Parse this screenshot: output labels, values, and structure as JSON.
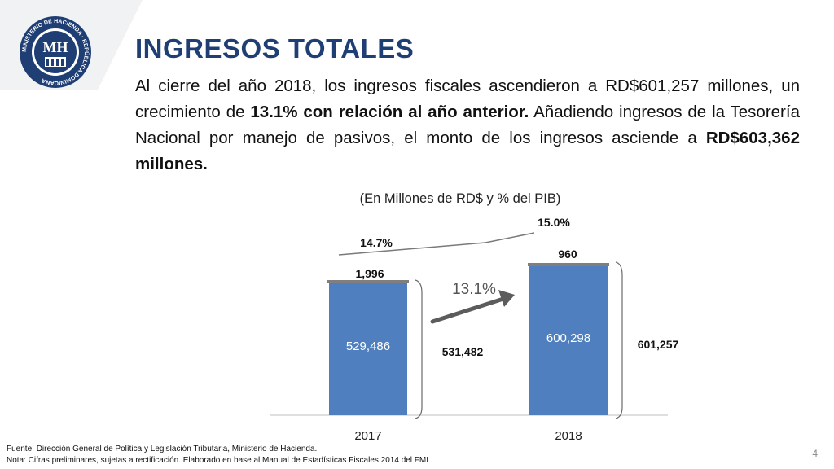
{
  "slide": {
    "title": "INGRESOS TOTALES",
    "paragraph": {
      "p1": "Al cierre del año 2018, los ingresos fiscales ascendieron a RD$601,257 millones, un crecimiento de ",
      "b1": "13.1% con relación al año anterior.",
      "p2": " Añadiendo ingresos de la Tesorería Nacional por manejo de pasivos, el monto de los ingresos asciende a ",
      "b2": "RD$603,362 millones."
    },
    "logo_text": "MH",
    "logo_ring_text": "MINISTERIO DE HACIENDA · REPÚBLICA DOMINICANA",
    "footer": {
      "line1": "Fuente: Dirección General de Política y Legislación Tributaria, Ministerio de Hacienda.",
      "line2": "Nota: Cifras preliminares, sujetas a rectificación. Elaborado en base al Manual  de Estadísticas Fiscales  2014 del FMI ."
    },
    "page_number": "4"
  },
  "colors": {
    "title": "#1f3f74",
    "bar_main": "#4f7fbf",
    "bar_top": "#7f7f7f",
    "arrow": "#5c5c5c",
    "bracket": "#6a6a6a",
    "logo_blue": "#1f3f74"
  },
  "chart_data": {
    "type": "bar",
    "stacked": true,
    "subtitle": "(En Millones de RD$ y % del PIB)",
    "categories": [
      "2017",
      "2018"
    ],
    "series": [
      {
        "values": [
          529486,
          600298
        ],
        "labels": [
          "529,486",
          "600,298"
        ]
      },
      {
        "values": [
          1996,
          960
        ],
        "labels": [
          "1,996",
          "960"
        ]
      }
    ],
    "totals": {
      "values": [
        531482,
        601257
      ],
      "labels": [
        "531,482",
        "601,257"
      ]
    },
    "pct_pib": {
      "values": [
        14.7,
        15.0
      ],
      "labels": [
        "14.7%",
        "15.0%"
      ]
    },
    "growth_label": "13.1%",
    "grid": false
  }
}
